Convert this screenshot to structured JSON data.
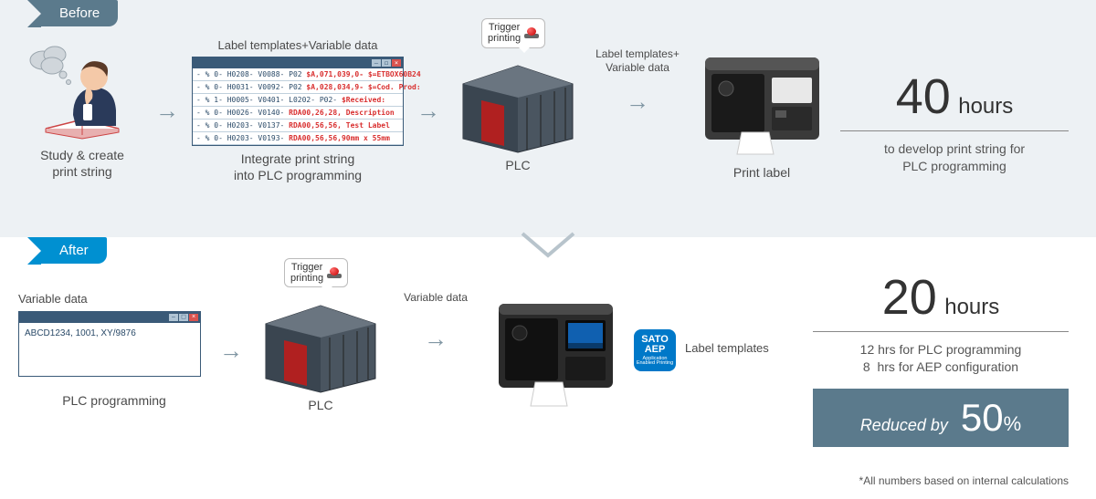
{
  "before": {
    "tag": "Before",
    "step1_label": "Study & create\nprint string",
    "step2_top": "Label templates+Variable data",
    "step2_label": "Integrate print string\ninto PLC programming",
    "code_lines": [
      {
        "pre": "- % 0- H0208- V0088- P02 ",
        "hl": "$A,071,039,0- $=ETBOX60B24"
      },
      {
        "pre": "- % 0- H0031- V0092- P02 ",
        "hl": "$A,028,034,9- $=Cod. Prod:"
      },
      {
        "pre": "- % 1- H0005- V0401- L0202- P02- ",
        "hl": "$Received:"
      },
      {
        "pre": "- % 0- H0026- V0140- ",
        "hl": "RDA00,26,28, Description"
      },
      {
        "pre": "- % 0- H0203- V0137- ",
        "hl": "RDA00,56,56, Test Label"
      },
      {
        "pre": "- % 0- H0203- V0193- ",
        "hl": "RDA00,56,56,90mm x 55mm"
      }
    ],
    "trigger_label": "Trigger\nprinting",
    "step3_top": "Label templates+\nVariable data",
    "step3_label": "PLC",
    "step4_label": "Print label",
    "stat_num": "40",
    "stat_unit": "hours",
    "stat_desc": "to develop print string for\nPLC programming"
  },
  "after": {
    "tag": "After",
    "step1_top": "Variable data",
    "step1_code": "ABCD1234, 1001, XY/9876",
    "step1_label": "PLC programming",
    "trigger_label": "Trigger\nprinting",
    "step2_label": "PLC",
    "step3_top": "Variable data",
    "aep_line1": "SATO",
    "aep_line2": "AEP",
    "aep_line3": "Application\nEnabled Printing",
    "step3_side": "Label templates",
    "stat_num": "20",
    "stat_unit": "hours",
    "stat_desc1": "12 hrs for PLC programming",
    "stat_desc2": "8  hrs for AEP configuration",
    "reduced_label": "Reduced by",
    "reduced_pct": "50",
    "reduced_unit": "%"
  },
  "footnote": "*All numbers based on internal calculations",
  "colors": {
    "before_bg": "#edf1f4",
    "tag_before": "#5b7a8c",
    "tag_after": "#0090d1",
    "accent_red": "#c40000",
    "aep_blue": "#0078c8"
  }
}
